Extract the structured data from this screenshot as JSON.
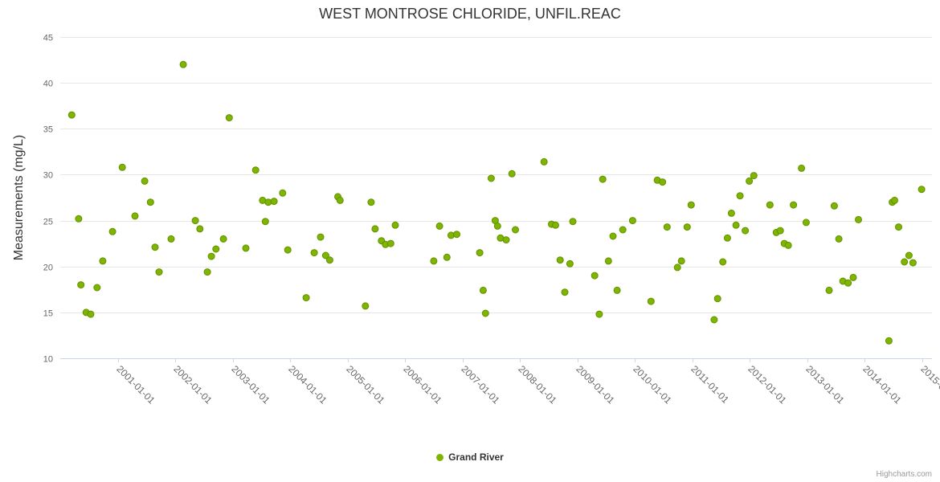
{
  "credits": "Highcharts.com",
  "colors": {
    "series_green": "#7db500",
    "point_stroke": "#648f00",
    "grid": "#e6e6e6",
    "axis_line": "#ccd6eb",
    "tick_label": "#666666",
    "title_text": "#333333",
    "axis_title_text": "#333333",
    "legend_text": "#333333",
    "credits_text": "#999999"
  },
  "chart_data": {
    "type": "scatter",
    "title": "WEST MONTROSE CHLORIDE, UNFIL.REAC",
    "xlabel": "",
    "ylabel": "Measurements (mg/L)",
    "xlim": [
      2000.0,
      2015.17
    ],
    "ylim": [
      10,
      45
    ],
    "yticks": [
      10,
      15,
      20,
      25,
      30,
      35,
      40,
      45
    ],
    "xticks": [
      {
        "v": 2001,
        "label": "2001-01-01"
      },
      {
        "v": 2002,
        "label": "2002-01-01"
      },
      {
        "v": 2003,
        "label": "2003-01-01"
      },
      {
        "v": 2004,
        "label": "2004-01-01"
      },
      {
        "v": 2005,
        "label": "2005-01-01"
      },
      {
        "v": 2006,
        "label": "2006-01-01"
      },
      {
        "v": 2007,
        "label": "2007-01-01"
      },
      {
        "v": 2008,
        "label": "2008-01-01"
      },
      {
        "v": 2009,
        "label": "2009-01-01"
      },
      {
        "v": 2010,
        "label": "2010-01-01"
      },
      {
        "v": 2011,
        "label": "2011-01-01"
      },
      {
        "v": 2012,
        "label": "2012-01-01"
      },
      {
        "v": 2013,
        "label": "2013-01-01"
      },
      {
        "v": 2014,
        "label": "2014-01-01"
      },
      {
        "v": 2015,
        "label": "2015-01-01"
      }
    ],
    "grid": "horizontal",
    "legend_position": "bottom-center",
    "series": [
      {
        "name": "Grand River",
        "color": "#7db500",
        "points": [
          [
            2000.2,
            36.5
          ],
          [
            2000.32,
            25.2
          ],
          [
            2000.36,
            18.0
          ],
          [
            2000.45,
            15.0
          ],
          [
            2000.53,
            14.8
          ],
          [
            2000.64,
            17.7
          ],
          [
            2000.74,
            20.6
          ],
          [
            2000.91,
            23.8
          ],
          [
            2001.08,
            30.8
          ],
          [
            2001.3,
            25.5
          ],
          [
            2001.47,
            29.3
          ],
          [
            2001.57,
            27.0
          ],
          [
            2001.65,
            22.1
          ],
          [
            2001.72,
            19.4
          ],
          [
            2001.93,
            23.0
          ],
          [
            2002.14,
            42.0
          ],
          [
            2002.35,
            25.0
          ],
          [
            2002.43,
            24.1
          ],
          [
            2002.56,
            19.4
          ],
          [
            2002.63,
            21.1
          ],
          [
            2002.71,
            21.9
          ],
          [
            2002.84,
            23.0
          ],
          [
            2002.94,
            36.2
          ],
          [
            2003.23,
            22.0
          ],
          [
            2003.4,
            30.5
          ],
          [
            2003.52,
            27.2
          ],
          [
            2003.57,
            24.9
          ],
          [
            2003.62,
            27.0
          ],
          [
            2003.72,
            27.1
          ],
          [
            2003.87,
            28.0
          ],
          [
            2003.96,
            21.8
          ],
          [
            2004.28,
            16.6
          ],
          [
            2004.42,
            21.5
          ],
          [
            2004.53,
            23.2
          ],
          [
            2004.62,
            21.2
          ],
          [
            2004.69,
            20.7
          ],
          [
            2004.83,
            27.6
          ],
          [
            2004.87,
            27.2
          ],
          [
            2005.31,
            15.7
          ],
          [
            2005.41,
            27.0
          ],
          [
            2005.48,
            24.1
          ],
          [
            2005.59,
            22.8
          ],
          [
            2005.66,
            22.4
          ],
          [
            2005.75,
            22.5
          ],
          [
            2005.83,
            24.5
          ],
          [
            2006.5,
            20.6
          ],
          [
            2006.6,
            24.4
          ],
          [
            2006.73,
            21.0
          ],
          [
            2006.8,
            23.4
          ],
          [
            2006.9,
            23.5
          ],
          [
            2007.3,
            21.5
          ],
          [
            2007.36,
            17.4
          ],
          [
            2007.4,
            14.9
          ],
          [
            2007.5,
            29.6
          ],
          [
            2007.57,
            25.0
          ],
          [
            2007.61,
            24.4
          ],
          [
            2007.66,
            23.1
          ],
          [
            2007.76,
            22.9
          ],
          [
            2007.86,
            30.1
          ],
          [
            2007.92,
            24.0
          ],
          [
            2008.42,
            31.4
          ],
          [
            2008.55,
            24.6
          ],
          [
            2008.62,
            24.5
          ],
          [
            2008.7,
            20.7
          ],
          [
            2008.78,
            17.2
          ],
          [
            2008.87,
            20.3
          ],
          [
            2008.92,
            24.9
          ],
          [
            2009.3,
            19.0
          ],
          [
            2009.38,
            14.8
          ],
          [
            2009.44,
            29.5
          ],
          [
            2009.54,
            20.6
          ],
          [
            2009.62,
            23.3
          ],
          [
            2009.69,
            17.4
          ],
          [
            2009.79,
            24.0
          ],
          [
            2009.96,
            25.0
          ],
          [
            2010.28,
            16.2
          ],
          [
            2010.39,
            29.4
          ],
          [
            2010.48,
            29.2
          ],
          [
            2010.56,
            24.3
          ],
          [
            2010.74,
            19.9
          ],
          [
            2010.81,
            20.6
          ],
          [
            2010.91,
            24.3
          ],
          [
            2010.98,
            26.7
          ],
          [
            2011.38,
            14.2
          ],
          [
            2011.44,
            16.5
          ],
          [
            2011.53,
            20.5
          ],
          [
            2011.61,
            23.1
          ],
          [
            2011.68,
            25.8
          ],
          [
            2011.76,
            24.5
          ],
          [
            2011.83,
            27.7
          ],
          [
            2011.92,
            23.9
          ],
          [
            2011.99,
            29.3
          ],
          [
            2012.07,
            29.9
          ],
          [
            2012.35,
            26.7
          ],
          [
            2012.46,
            23.7
          ],
          [
            2012.53,
            23.9
          ],
          [
            2012.6,
            22.5
          ],
          [
            2012.67,
            22.3
          ],
          [
            2012.76,
            26.7
          ],
          [
            2012.9,
            30.7
          ],
          [
            2012.98,
            24.8
          ],
          [
            2013.38,
            17.4
          ],
          [
            2013.47,
            26.6
          ],
          [
            2013.55,
            23.0
          ],
          [
            2013.62,
            18.4
          ],
          [
            2013.71,
            18.2
          ],
          [
            2013.8,
            18.8
          ],
          [
            2013.89,
            25.1
          ],
          [
            2014.42,
            11.9
          ],
          [
            2014.48,
            27.0
          ],
          [
            2014.52,
            27.2
          ],
          [
            2014.59,
            24.3
          ],
          [
            2014.69,
            20.5
          ],
          [
            2014.77,
            21.2
          ],
          [
            2014.84,
            20.4
          ],
          [
            2014.99,
            28.4
          ]
        ]
      }
    ]
  }
}
